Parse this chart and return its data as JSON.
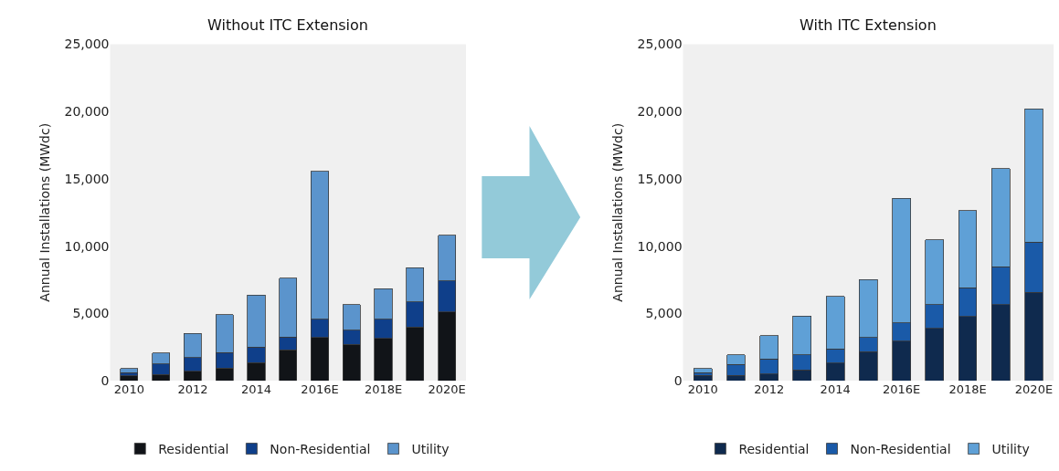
{
  "chart_data": [
    {
      "type": "bar",
      "title": "Without ITC Extension",
      "ylabel": "Annual Installations (MWdc)",
      "stacked": true,
      "legend": "bottom",
      "grid": false,
      "categories": [
        "2010",
        null,
        "2012",
        null,
        "2014",
        null,
        "2016E",
        null,
        "2018E",
        null,
        "2020E"
      ],
      "ylim": [
        0,
        25000
      ],
      "yticks": [
        0,
        {
          "value": 5000,
          "label": "5,000"
        },
        {
          "value": 10000,
          "label": "10,000"
        },
        {
          "value": 15000,
          "label": "15,000"
        },
        {
          "value": 20000,
          "label": "20,000"
        },
        {
          "value": 25000,
          "label": "25,000"
        }
      ],
      "series": [
        {
          "name": "Residential",
          "color": "#111418",
          "values": [
            350,
            450,
            700,
            950,
            1350,
            2300,
            3200,
            2700,
            3150,
            4000,
            5100
          ]
        },
        {
          "name": "Non-Residential",
          "color": "#0f3f8a",
          "values": [
            250,
            800,
            1000,
            1150,
            1150,
            950,
            1350,
            1050,
            1400,
            1850,
            2300
          ]
        },
        {
          "name": "Utility",
          "color": "#5b94cc",
          "values": [
            300,
            800,
            1800,
            2800,
            3850,
            4350,
            11000,
            1900,
            2300,
            2550,
            3400
          ]
        }
      ]
    },
    {
      "type": "bar",
      "title": "With ITC Extension",
      "ylabel": "Annual Installations (MWdc)",
      "stacked": true,
      "legend": "bottom",
      "grid": false,
      "categories": [
        "2010",
        null,
        "2012",
        null,
        "2014",
        null,
        "2016E",
        null,
        "2018E",
        null,
        "2020E"
      ],
      "ylim": [
        0,
        25000
      ],
      "yticks": [
        0,
        {
          "value": 5000,
          "label": "5,000"
        },
        {
          "value": 10000,
          "label": "10,000"
        },
        {
          "value": 15000,
          "label": "15,000"
        },
        {
          "value": 20000,
          "label": "20,000"
        },
        {
          "value": 25000,
          "label": "25,000"
        }
      ],
      "series": [
        {
          "name": "Residential",
          "color": "#0f2a4e",
          "values": [
            400,
            400,
            500,
            800,
            1300,
            2150,
            2950,
            3900,
            4750,
            5650,
            6550
          ]
        },
        {
          "name": "Non-Residential",
          "color": "#1a5aa8",
          "values": [
            200,
            800,
            1100,
            1100,
            1050,
            1050,
            1350,
            1750,
            2150,
            2800,
            3750
          ]
        },
        {
          "name": "Utility",
          "color": "#5fa0d6",
          "values": [
            300,
            700,
            1750,
            2900,
            3900,
            4300,
            9250,
            4800,
            5750,
            7300,
            9900
          ]
        }
      ]
    }
  ]
}
